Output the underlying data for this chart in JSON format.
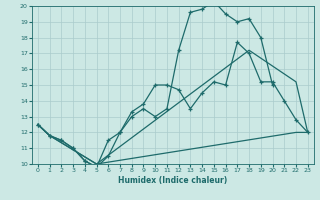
{
  "xlabel": "Humidex (Indice chaleur)",
  "background_color": "#cce8e4",
  "grid_color": "#aacccc",
  "line_color": "#1e6b6b",
  "xmin": 0,
  "xmax": 23,
  "ymin": 10,
  "ymax": 20,
  "s1x": [
    0,
    1,
    2,
    3,
    4,
    5,
    6,
    7,
    8,
    9,
    10,
    11,
    12,
    13,
    14,
    15,
    16,
    17,
    18,
    19,
    20,
    21,
    22,
    23
  ],
  "s1y": [
    12.5,
    11.8,
    11.5,
    11.0,
    10.2,
    9.8,
    11.5,
    12.0,
    13.3,
    13.8,
    15.0,
    15.0,
    14.7,
    13.5,
    14.5,
    15.2,
    15.0,
    17.7,
    17.0,
    15.2,
    15.2,
    14.0,
    12.8,
    12.0
  ],
  "s2x": [
    0,
    1,
    2,
    3,
    4,
    5,
    6,
    7,
    8,
    9,
    10,
    11,
    12,
    13,
    14,
    15,
    16,
    17,
    18,
    19,
    20
  ],
  "s2y": [
    12.5,
    11.8,
    11.5,
    11.0,
    10.2,
    9.8,
    10.5,
    12.0,
    13.0,
    13.5,
    13.0,
    13.5,
    17.2,
    19.6,
    19.8,
    20.3,
    19.5,
    19.0,
    19.2,
    18.0,
    15.0
  ],
  "s3x": [
    0,
    1,
    5,
    22,
    23
  ],
  "s3y": [
    12.5,
    11.8,
    10.0,
    12.0,
    12.0
  ],
  "s4x": [
    0,
    1,
    5,
    18,
    22,
    23
  ],
  "s4y": [
    12.5,
    11.8,
    10.0,
    17.2,
    15.2,
    12.0
  ]
}
